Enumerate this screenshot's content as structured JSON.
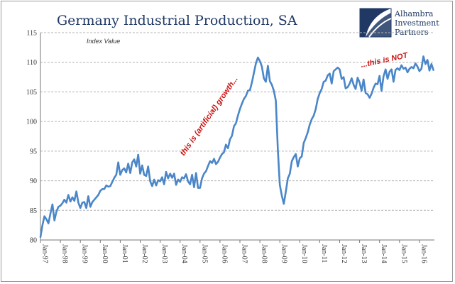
{
  "chart_data": {
    "type": "line",
    "title": "Germany Industrial Production, SA",
    "ylabel": "Index Value",
    "xlabel": "",
    "ylim": [
      80,
      115
    ],
    "yticks": [
      80,
      85,
      90,
      95,
      100,
      105,
      110,
      115
    ],
    "xlim": [
      1997,
      2016.75
    ],
    "xticks": [
      {
        "year": 1997,
        "label": "Jan-97"
      },
      {
        "year": 1998,
        "label": "Jan-98"
      },
      {
        "year": 1999,
        "label": "Jan-99"
      },
      {
        "year": 2000,
        "label": "Jan-00"
      },
      {
        "year": 2001,
        "label": "Jan-01"
      },
      {
        "year": 2002,
        "label": "Jan-02"
      },
      {
        "year": 2003,
        "label": "Jan-03"
      },
      {
        "year": 2004,
        "label": "Jan-04"
      },
      {
        "year": 2005,
        "label": "Jan-05"
      },
      {
        "year": 2006,
        "label": "Jan-06"
      },
      {
        "year": 2007,
        "label": "Jan-07"
      },
      {
        "year": 2008,
        "label": "Jan-08"
      },
      {
        "year": 2009,
        "label": "Jan-09"
      },
      {
        "year": 2010,
        "label": "Jan-10"
      },
      {
        "year": 2011,
        "label": "Jan-11"
      },
      {
        "year": 2012,
        "label": "Jan-12"
      },
      {
        "year": 2013,
        "label": "Jan-13"
      },
      {
        "year": 2014,
        "label": "Jan-14"
      },
      {
        "year": 2015,
        "label": "Jan-15"
      },
      {
        "year": 2016,
        "label": "Jan-16"
      }
    ],
    "grid": true,
    "series": [
      {
        "name": "Germany Industrial Production",
        "color": "#4a86c8",
        "x": [
          1997.0,
          1997.1,
          1997.2,
          1997.3,
          1997.4,
          1997.5,
          1997.6,
          1997.7,
          1997.8,
          1997.9,
          1998.0,
          1998.1,
          1998.2,
          1998.3,
          1998.4,
          1998.5,
          1998.6,
          1998.7,
          1998.8,
          1998.9,
          1999.0,
          1999.1,
          1999.2,
          1999.3,
          1999.4,
          1999.5,
          1999.6,
          1999.7,
          1999.8,
          1999.9,
          2000.0,
          2000.1,
          2000.2,
          2000.3,
          2000.4,
          2000.5,
          2000.6,
          2000.7,
          2000.8,
          2000.9,
          2001.0,
          2001.1,
          2001.2,
          2001.3,
          2001.4,
          2001.5,
          2001.6,
          2001.7,
          2001.8,
          2001.9,
          2002.0,
          2002.1,
          2002.2,
          2002.3,
          2002.4,
          2002.5,
          2002.6,
          2002.7,
          2002.8,
          2002.9,
          2003.0,
          2003.1,
          2003.2,
          2003.3,
          2003.4,
          2003.5,
          2003.6,
          2003.7,
          2003.8,
          2003.9,
          2004.0,
          2004.1,
          2004.2,
          2004.3,
          2004.4,
          2004.5,
          2004.6,
          2004.7,
          2004.8,
          2004.9,
          2005.0,
          2005.1,
          2005.2,
          2005.3,
          2005.4,
          2005.5,
          2005.6,
          2005.7,
          2005.8,
          2005.9,
          2006.0,
          2006.1,
          2006.2,
          2006.3,
          2006.4,
          2006.5,
          2006.6,
          2006.7,
          2006.8,
          2006.9,
          2007.0,
          2007.1,
          2007.2,
          2007.3,
          2007.4,
          2007.5,
          2007.6,
          2007.7,
          2007.8,
          2007.9,
          2008.0,
          2008.1,
          2008.2,
          2008.3,
          2008.4,
          2008.5,
          2008.6,
          2008.7,
          2008.8,
          2008.9,
          2009.0,
          2009.1,
          2009.2,
          2009.3,
          2009.4,
          2009.5,
          2009.6,
          2009.7,
          2009.8,
          2009.9,
          2010.0,
          2010.1,
          2010.2,
          2010.3,
          2010.4,
          2010.5,
          2010.6,
          2010.7,
          2010.8,
          2010.9,
          2011.0,
          2011.1,
          2011.2,
          2011.3,
          2011.4,
          2011.5,
          2011.6,
          2011.7,
          2011.8,
          2011.9,
          2012.0,
          2012.1,
          2012.2,
          2012.3,
          2012.4,
          2012.5,
          2012.6,
          2012.7,
          2012.8,
          2012.9,
          2013.0,
          2013.1,
          2013.2,
          2013.3,
          2013.4,
          2013.5,
          2013.6,
          2013.7,
          2013.8,
          2013.9,
          2014.0,
          2014.1,
          2014.2,
          2014.3,
          2014.4,
          2014.5,
          2014.6,
          2014.7,
          2014.8,
          2014.9,
          2015.0,
          2015.1,
          2015.2,
          2015.3,
          2015.4,
          2015.5,
          2015.6,
          2015.7,
          2015.8,
          2015.9,
          2016.0,
          2016.1,
          2016.2,
          2016.3,
          2016.4,
          2016.5,
          2016.6,
          2016.7
        ],
        "values": [
          80.5,
          82.5,
          84,
          83.5,
          82.8,
          84.5,
          86,
          83.3,
          84.8,
          85.6,
          85.8,
          86.2,
          86.8,
          86.3,
          87.6,
          86.5,
          87.2,
          86.6,
          88.2,
          86.3,
          85.4,
          86.3,
          86.4,
          85.4,
          87.4,
          85.6,
          86.4,
          86.8,
          87.2,
          87.6,
          88.3,
          88.6,
          88.6,
          89.2,
          89.0,
          89.1,
          89.8,
          90.5,
          91.0,
          93.1,
          91.0,
          91.8,
          92.1,
          91.4,
          92.9,
          91.3,
          93.1,
          93.6,
          92.4,
          94.4,
          91.2,
          92.6,
          91.0,
          90.8,
          92.4,
          89.9,
          89.1,
          90.2,
          89.2,
          90.1,
          89.9,
          90.6,
          89.4,
          91.5,
          90.4,
          91.2,
          90.5,
          91.2,
          89.3,
          90.2,
          89.8,
          90.6,
          90.4,
          91.1,
          89.9,
          89.4,
          91.0,
          88.9,
          91.3,
          88.8,
          88.8,
          90.4,
          91.2,
          91.6,
          92.5,
          93.3,
          93.0,
          93.7,
          92.8,
          93.2,
          93.9,
          94.5,
          94.8,
          96.1,
          95.5,
          97.0,
          97.6,
          99.2,
          99.7,
          101.0,
          102.1,
          103.0,
          103.8,
          104.3,
          105.2,
          105.3,
          106.6,
          108.2,
          109.8,
          110.8,
          110.2,
          109.3,
          107.3,
          106.7,
          109.4,
          106.8,
          106.2,
          105.2,
          103.5,
          95.3,
          89.3,
          87.5,
          86.1,
          88.1,
          90.4,
          91.2,
          93.3,
          94.0,
          94.5,
          92.4,
          93.8,
          94.1,
          96.4,
          97.2,
          98.2,
          99.5,
          100.4,
          101.0,
          102.1,
          103.8,
          104.8,
          105.5,
          106.7,
          106.9,
          107.8,
          108.1,
          106.4,
          108.5,
          108.8,
          109.1,
          108.8,
          107.2,
          107.5,
          105.6,
          105.8,
          106.4,
          107.3,
          106.2,
          105.5,
          107.4,
          106.6,
          105.2,
          107.1,
          104.8,
          104.6,
          104.0,
          104.7,
          105.7,
          106.4,
          106.3,
          107.7,
          105.2,
          107.6,
          108.8,
          107.2,
          108.4,
          108.8,
          106.7,
          108.7,
          109.0,
          108.7,
          109.5,
          108.9,
          109.1,
          108.3,
          108.9,
          109.2,
          109.0,
          109.8,
          109.3,
          108.5,
          108.9,
          111.0,
          109.7,
          110.4,
          108.6,
          109.7,
          108.7
        ]
      }
    ],
    "annotations": [
      {
        "text": "this is (artificial) growth...",
        "color": "#cc1010"
      },
      {
        "text": "...this is NOT",
        "color": "#cc1010"
      }
    ]
  },
  "logo": {
    "lines": [
      "Alhambra",
      "Investment",
      "Partners"
    ],
    "color": "#1f3864"
  }
}
